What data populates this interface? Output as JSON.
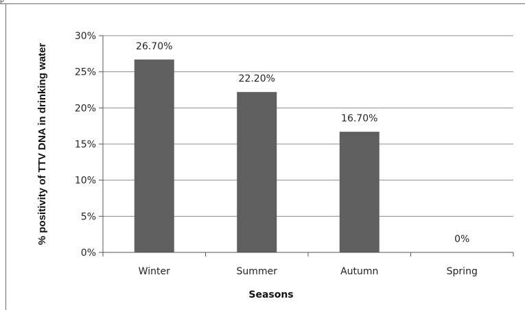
{
  "page": {
    "corner_text": "p"
  },
  "chart_data": {
    "type": "bar",
    "categories": [
      "Winter",
      "Summer",
      "Autumn",
      "Spring"
    ],
    "values": [
      26.7,
      22.2,
      16.7,
      0
    ],
    "data_labels": [
      "26.70%",
      "22.20%",
      "16.70%",
      "0%"
    ],
    "xlabel": "Seasons",
    "ylabel": "% positivity of TTV DNA in drinking water",
    "ylim": [
      0,
      30
    ],
    "yticks": [
      0,
      5,
      10,
      15,
      20,
      25,
      30
    ],
    "ytick_labels": [
      "0%",
      "5%",
      "10%",
      "15%",
      "20%",
      "25%",
      "30%"
    ],
    "grid": true,
    "legend": "none",
    "bar_color": "#5f5f5f",
    "grid_color": "#8c8c8c"
  }
}
